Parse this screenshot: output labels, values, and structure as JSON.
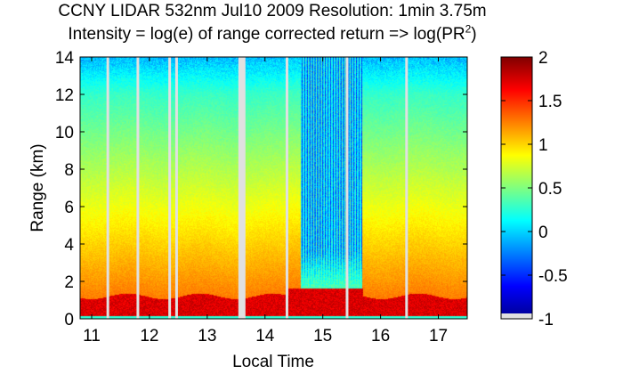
{
  "title_line1": "CCNY LIDAR 532nm Jul10 2009 Resolution: 1min 3.75m",
  "title_line2_main": "Intensity = log(e) of range corrected return => log(PR",
  "title_line2_sup": "2",
  "title_line2_tail": ")",
  "chart_data": {
    "type": "heatmap",
    "xlabel": "Local Time",
    "ylabel": "Range (km)",
    "xlim": [
      10.8,
      17.5
    ],
    "ylim": [
      0,
      14
    ],
    "x_ticks": [
      11,
      12,
      13,
      14,
      15,
      16,
      17
    ],
    "y_ticks": [
      0,
      2,
      4,
      6,
      8,
      10,
      12,
      14
    ],
    "colorbar": {
      "range": [
        -1,
        2
      ],
      "ticks": [
        2,
        1.5,
        1,
        0.5,
        0,
        -0.5,
        -1
      ],
      "colormap": "jet"
    },
    "data_gaps_local_time": [
      11.28,
      11.8,
      12.35,
      12.47,
      13.6,
      14.38,
      15.42,
      16.45
    ],
    "cloud_layer_range_km": [
      1.2,
      1.6
    ]
  },
  "colors": {
    "background": "#ffffff",
    "gap": "#e0e0e0"
  }
}
